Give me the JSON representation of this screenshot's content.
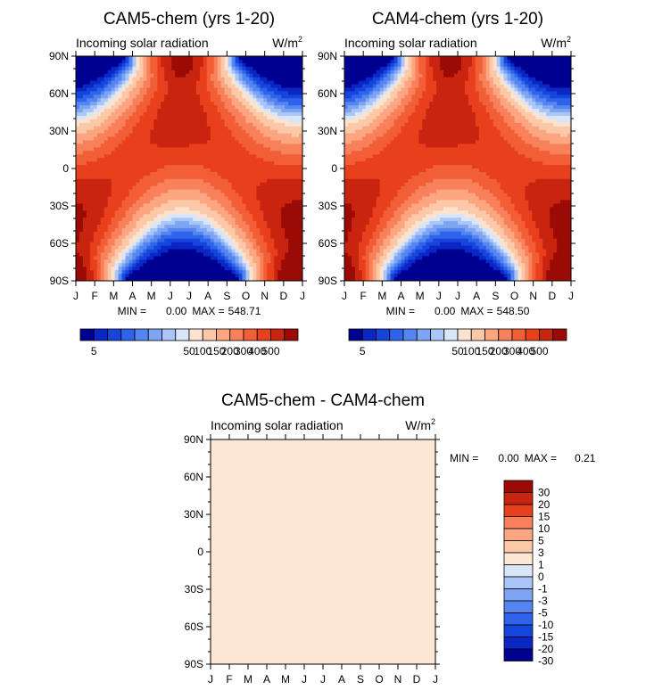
{
  "chart_data": [
    {
      "type": "heatmap",
      "title": "CAM5-chem (yrs 1-20)",
      "subtitle": "Incoming solar radiation",
      "units": "W/m",
      "units_exponent": "2",
      "x_tick_labels": [
        "J",
        "F",
        "M",
        "A",
        "M",
        "J",
        "J",
        "A",
        "S",
        "O",
        "N",
        "D",
        "J"
      ],
      "y_tick_labels": [
        "90N",
        "60N",
        "30N",
        "0",
        "30S",
        "60S",
        "90S"
      ],
      "stats": {
        "min_label": "MIN =",
        "min": "0.00",
        "max_label": "MAX =",
        "max": "548.71"
      },
      "colorbar": {
        "orientation": "horizontal",
        "colors": [
          "#000090",
          "#0a26c4",
          "#1645dc",
          "#2f63ea",
          "#5585f0",
          "#7ea5f4",
          "#aac5f7",
          "#d8e6f8",
          "#fce3d0",
          "#fcc9a8",
          "#fba680",
          "#f8805a",
          "#f25e36",
          "#e8401c",
          "#c82410",
          "#9b0b06"
        ],
        "tick_labels": [
          "5",
          "50",
          "100",
          "150",
          "200",
          "300",
          "400",
          "500"
        ]
      }
    },
    {
      "type": "heatmap",
      "title": "CAM4-chem (yrs 1-20)",
      "subtitle": "Incoming solar radiation",
      "units": "W/m",
      "units_exponent": "2",
      "x_tick_labels": [
        "J",
        "F",
        "M",
        "A",
        "M",
        "J",
        "J",
        "A",
        "S",
        "O",
        "N",
        "D",
        "J"
      ],
      "y_tick_labels": [
        "90N",
        "60N",
        "30N",
        "0",
        "30S",
        "60S",
        "90S"
      ],
      "stats": {
        "min_label": "MIN =",
        "min": "0.00",
        "max_label": "MAX =",
        "max": "548.50"
      },
      "colorbar": {
        "orientation": "horizontal",
        "colors": [
          "#000090",
          "#0a26c4",
          "#1645dc",
          "#2f63ea",
          "#5585f0",
          "#7ea5f4",
          "#aac5f7",
          "#d8e6f8",
          "#fce3d0",
          "#fcc9a8",
          "#fba680",
          "#f8805a",
          "#f25e36",
          "#e8401c",
          "#c82410",
          "#9b0b06"
        ],
        "tick_labels": [
          "5",
          "50",
          "100",
          "150",
          "200",
          "300",
          "400",
          "500"
        ]
      }
    },
    {
      "type": "heatmap",
      "title": "CAM5-chem - CAM4-chem",
      "subtitle": "Incoming solar radiation",
      "units": "W/m",
      "units_exponent": "2",
      "x_tick_labels": [
        "J",
        "F",
        "M",
        "A",
        "M",
        "J",
        "J",
        "A",
        "S",
        "O",
        "N",
        "D",
        "J"
      ],
      "y_tick_labels": [
        "90N",
        "60N",
        "30N",
        "0",
        "30S",
        "60S",
        "90S"
      ],
      "stats": {
        "min_label": "MIN =",
        "min": "0.00",
        "max_label": "MAX =",
        "max": "0.21"
      },
      "fill_color": "#fde8d6",
      "colorbar": {
        "orientation": "vertical",
        "colors": [
          "#9b0b06",
          "#c82410",
          "#e8401c",
          "#f8805a",
          "#fba680",
          "#fcc9a8",
          "#fde8d6",
          "#d8e6f8",
          "#aac5f7",
          "#7ea5f4",
          "#5585f0",
          "#2f63ea",
          "#1645dc",
          "#0a26c4",
          "#000090"
        ],
        "tick_labels": [
          "30",
          "20",
          "15",
          "10",
          "5",
          "3",
          "1",
          "0",
          "-1",
          "-3",
          "-5",
          "-10",
          "-15",
          "-20",
          "-30"
        ]
      }
    }
  ]
}
